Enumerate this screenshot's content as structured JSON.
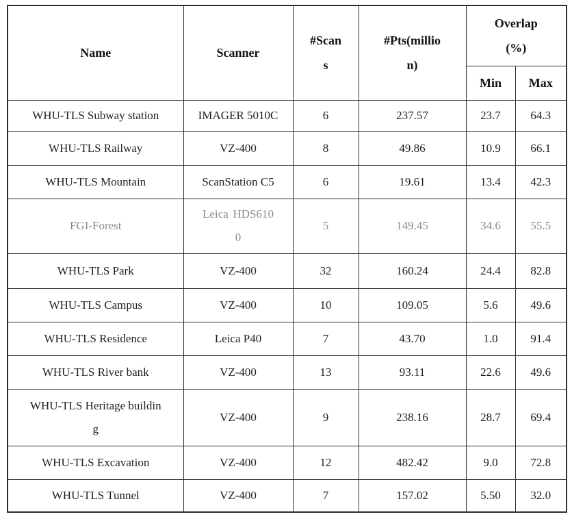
{
  "table": {
    "columns": {
      "name": "Name",
      "scanner": "Scanner",
      "scans": "#Scans",
      "pts": "#Pts(million)",
      "overlap": "Overlap (%)",
      "min": "Min",
      "max": "Max"
    },
    "rows": [
      {
        "name": "WHU-TLS Subway station",
        "scanner": "IMAGER 5010C",
        "scans": "6",
        "pts": "237.57",
        "min": "23.7",
        "max": "64.3"
      },
      {
        "name": "WHU-TLS Railway",
        "scanner": "VZ-400",
        "scans": "8",
        "pts": "49.86",
        "min": "10.9",
        "max": "66.1"
      },
      {
        "name": "WHU-TLS Mountain",
        "scanner": "ScanStation C5",
        "scans": "6",
        "pts": "19.61",
        "min": "13.4",
        "max": "42.3"
      },
      {
        "name": "FGI-Forest",
        "scanner": "Leica HDS6100",
        "scans": "5",
        "pts": "149.45",
        "min": "34.6",
        "max": "55.5"
      },
      {
        "name": "WHU-TLS Park",
        "scanner": "VZ-400",
        "scans": "32",
        "pts": "160.24",
        "min": "24.4",
        "max": "82.8"
      },
      {
        "name": "WHU-TLS Campus",
        "scanner": "VZ-400",
        "scans": "10",
        "pts": "109.05",
        "min": "5.6",
        "max": "49.6"
      },
      {
        "name": "WHU-TLS Residence",
        "scanner": "Leica P40",
        "scans": "7",
        "pts": "43.70",
        "min": "1.0",
        "max": "91.4"
      },
      {
        "name": "WHU-TLS River bank",
        "scanner": "VZ-400",
        "scans": "13",
        "pts": "93.11",
        "min": "22.6",
        "max": "49.6"
      },
      {
        "name": "WHU-TLS Heritage building",
        "scanner": "VZ-400",
        "scans": "9",
        "pts": "238.16",
        "min": "28.7",
        "max": "69.4"
      },
      {
        "name": "WHU-TLS Excavation",
        "scanner": "VZ-400",
        "scans": "12",
        "pts": "482.42",
        "min": "9.0",
        "max": "72.8"
      },
      {
        "name": "WHU-TLS Tunnel",
        "scanner": "VZ-400",
        "scans": "7",
        "pts": "157.02",
        "min": "5.50",
        "max": "32.0"
      }
    ]
  },
  "colors": {
    "background": "#ffffff",
    "text": "#1f1f1f",
    "border": "#2e2e2e",
    "muted_row_text": "#8a8a8a"
  }
}
